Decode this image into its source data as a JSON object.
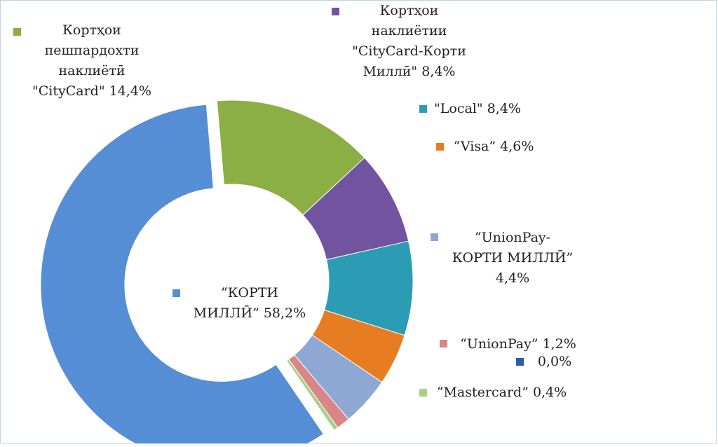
{
  "chart_data": {
    "type": "pie",
    "subtype": "donut",
    "exploded": true,
    "title": "",
    "series": [
      {
        "name": "Кортҳои пешпардохти наклиётӣ \"CityCard\"",
        "value": 14.4,
        "label": "Кортҳои\nпешпардохти\nнаклиётӣ\n\"CityCard\" 14,4%",
        "color": "#8BAF44"
      },
      {
        "name": "Кортҳои наклиётии \"CityCard-Корти Миллӣ\"",
        "value": 8.4,
        "label": "Кортҳои\nнаклиётии\n\"CityCard-Корти\nМиллӣ\" 8,4%",
        "color": "#7153A0"
      },
      {
        "name": "\"Local\"",
        "value": 8.4,
        "label": "\"Local\" 8,4%",
        "color": "#2C9CB5"
      },
      {
        "name": "“Visa”",
        "value": 4.6,
        "label": "“Visa” 4,6%",
        "color": "#E87C22"
      },
      {
        "name": "“UnionPay-КОРТИ МИЛЛӢ”",
        "value": 4.4,
        "label": "“UnionPay-\nКОРТИ МИЛЛӢ”\n4,4%",
        "color": "#8FA7D4"
      },
      {
        "name": "“UnionPay”",
        "value": 1.2,
        "label": "“UnionPay” 1,2%",
        "color": "#D98688"
      },
      {
        "name": "",
        "value": 0.0,
        "label": "0,0%",
        "color": "#2D5CA5"
      },
      {
        "name": "“Mastercard”",
        "value": 0.4,
        "label": "“Mastercard” 0,4%",
        "color": "#A8D08A"
      },
      {
        "name": "“КОРТИ МИЛЛӢ”",
        "value": 58.2,
        "label": "“КОРТИ\nМИЛЛӢ” 58,2%",
        "color": "#558ED5"
      }
    ]
  }
}
